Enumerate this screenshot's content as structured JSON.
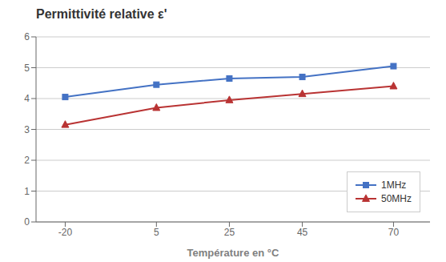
{
  "chart_data": {
    "type": "line",
    "title": "Permittivité relative ε'",
    "xlabel": "Température en °C",
    "x": [
      -20,
      5,
      25,
      45,
      70
    ],
    "series": [
      {
        "name": "1MHz",
        "color": "#4472c4",
        "marker": "square",
        "values": [
          4.05,
          4.45,
          4.65,
          4.7,
          5.05
        ]
      },
      {
        "name": "50MHz",
        "color": "#b93333",
        "marker": "triangle",
        "values": [
          3.15,
          3.7,
          3.95,
          4.15,
          4.4
        ]
      }
    ],
    "xlim": [
      -28,
      80
    ],
    "xticks": [
      -20,
      5,
      25,
      45,
      70
    ],
    "ylim": [
      0,
      6
    ],
    "yticks": [
      0,
      1,
      2,
      3,
      4,
      5,
      6
    ],
    "grid": "y",
    "legend": "lower right"
  }
}
